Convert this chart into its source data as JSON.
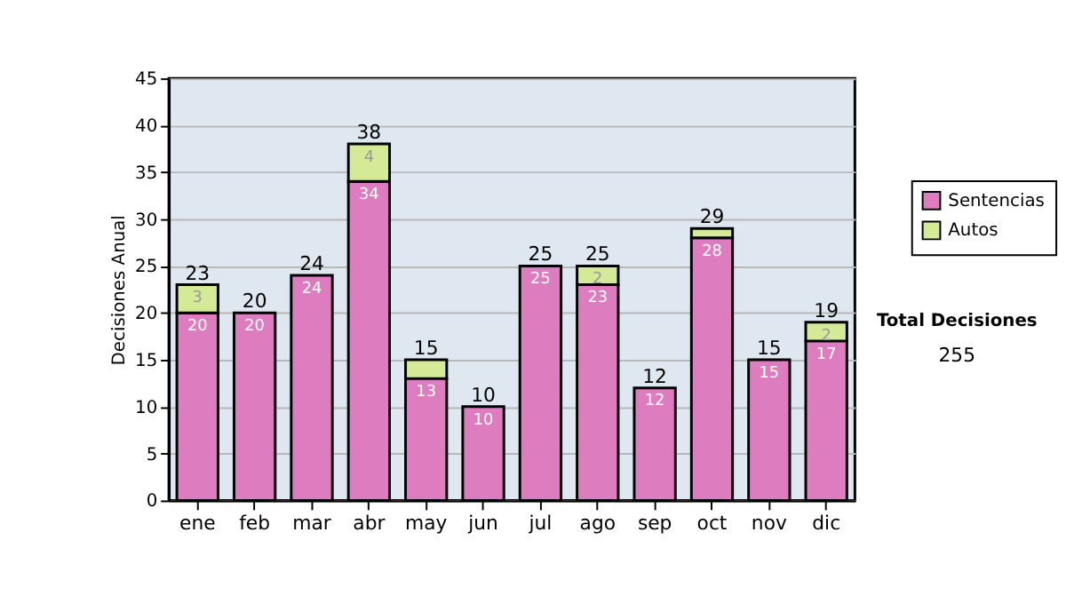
{
  "chart_data": {
    "type": "bar",
    "stacked": true,
    "ylabel": "Decisiones Anual",
    "categories": [
      "ene",
      "feb",
      "mar",
      "abr",
      "may",
      "jun",
      "jul",
      "ago",
      "sep",
      "oct",
      "nov",
      "dic"
    ],
    "series": [
      {
        "name": "Sentencias",
        "color": "#dd7dbf",
        "values": [
          20,
          20,
          24,
          34,
          13,
          10,
          25,
          23,
          12,
          28,
          15,
          17
        ],
        "value_labels": [
          "20",
          "20",
          "24",
          "34",
          "13",
          "10",
          "25",
          "23",
          "12",
          "28",
          "15",
          "17"
        ]
      },
      {
        "name": "Autos",
        "color": "#d4ea96",
        "values": [
          3,
          0,
          0,
          4,
          2,
          0,
          0,
          2,
          0,
          1,
          0,
          2
        ],
        "value_labels": [
          "3",
          null,
          null,
          "4",
          null,
          null,
          null,
          "2",
          null,
          null,
          null,
          "2"
        ]
      }
    ],
    "totals": [
      "23",
      "20",
      "24",
      "38",
      "15",
      "10",
      "25",
      "25",
      "12",
      "29",
      "15",
      "19"
    ],
    "ylim": [
      0,
      45
    ],
    "yticks": [
      0,
      5,
      10,
      15,
      20,
      25,
      30,
      35,
      40,
      45
    ],
    "grid": "y",
    "legend": "right",
    "annotations": [
      "Total Decisiones",
      "255"
    ]
  }
}
